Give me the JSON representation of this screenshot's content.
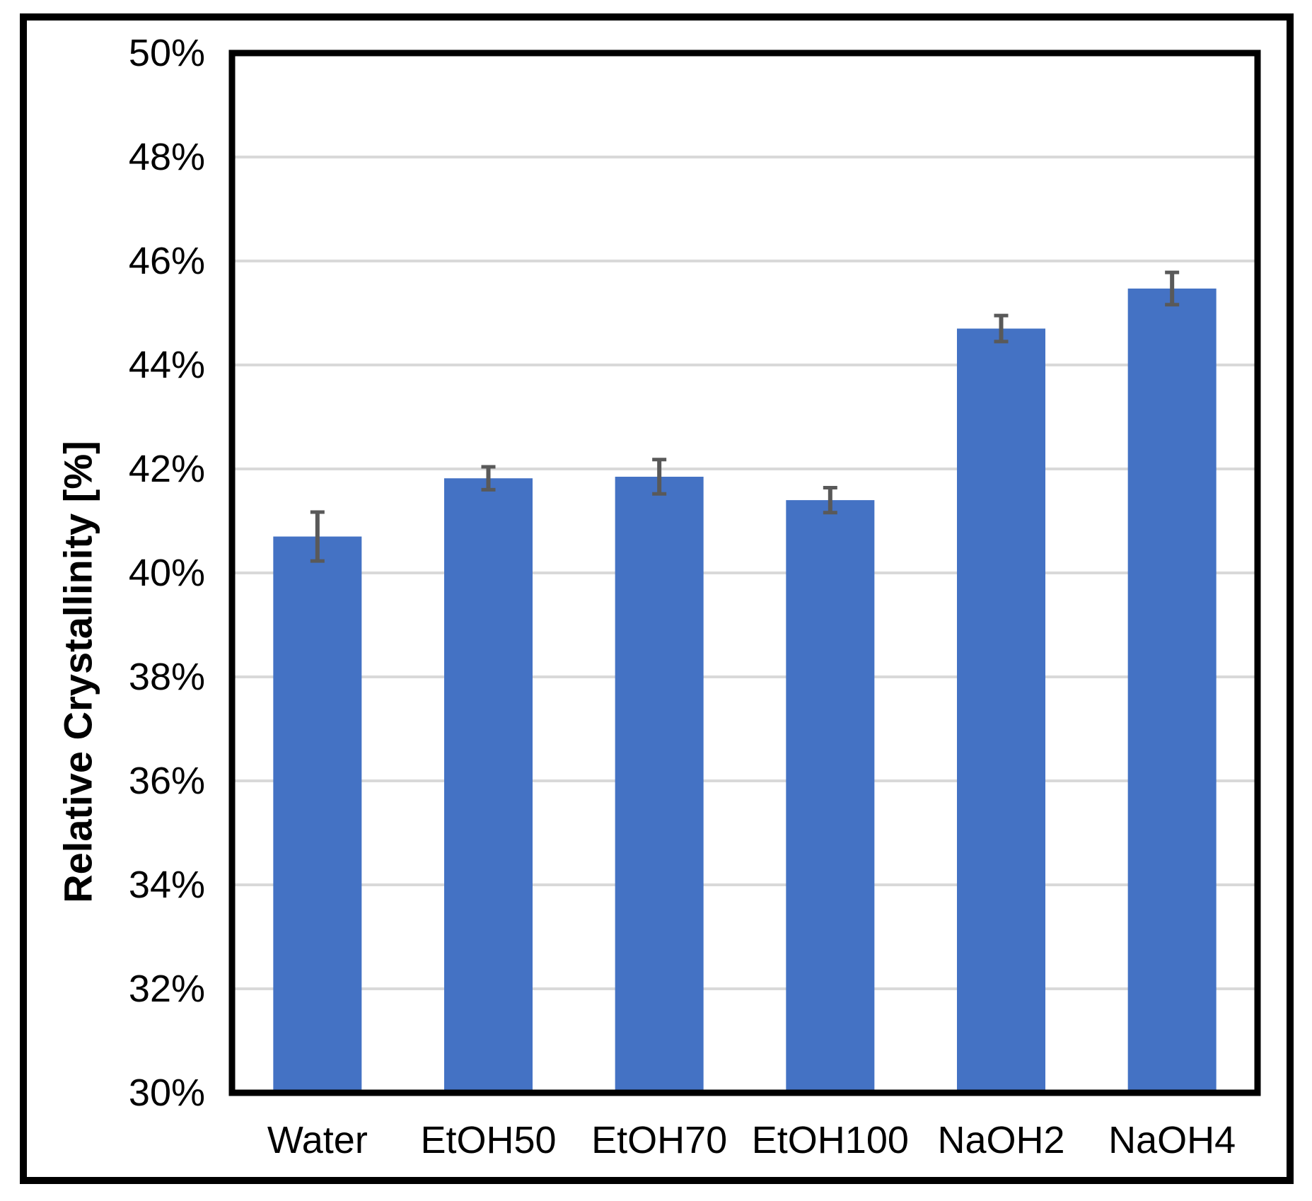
{
  "chart_data": {
    "type": "bar",
    "title": "",
    "xlabel": "",
    "ylabel": "Relative Crystallinity [%]",
    "categories": [
      "Water",
      "EtOH50",
      "EtOH70",
      "EtOH100",
      "NaOH2",
      "NaOH4"
    ],
    "values": [
      40.7,
      41.82,
      41.85,
      41.4,
      44.7,
      45.47
    ],
    "error_bars": [
      0.47,
      0.22,
      0.33,
      0.24,
      0.25,
      0.31
    ],
    "ylim": [
      30,
      50
    ],
    "ytick_step": 2,
    "ytick_labels": [
      "30%",
      "32%",
      "34%",
      "36%",
      "38%",
      "40%",
      "42%",
      "44%",
      "46%",
      "48%",
      "50%"
    ],
    "grid": true,
    "legend": false,
    "colors": {
      "bar_fill": "#4472C4",
      "error_bar": "#595959",
      "gridline": "#D9D9D9",
      "axis_border": "#000000",
      "outer_frame": "#000000",
      "text": "#000000",
      "background": "#FFFFFF"
    }
  }
}
